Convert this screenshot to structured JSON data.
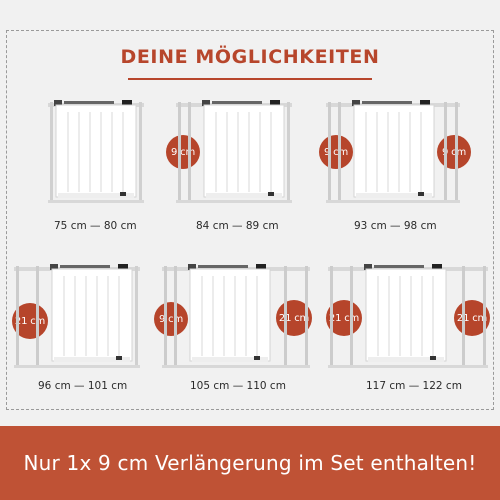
{
  "header": {
    "title": "DEINE MÖGLICHKEITEN"
  },
  "options": [
    {
      "size": "75 cm — 80 cm",
      "left_extensions": [],
      "right_extensions": []
    },
    {
      "size": "84 cm — 89 cm",
      "left_extensions": [
        "9 cm"
      ],
      "right_extensions": []
    },
    {
      "size": "93 cm — 98 cm",
      "left_extensions": [
        "9 cm"
      ],
      "right_extensions": [
        "9 cm"
      ]
    },
    {
      "size": "96 cm — 101 cm",
      "left_extensions": [
        "21 cm"
      ],
      "right_extensions": []
    },
    {
      "size": "105 cm — 110 cm",
      "left_extensions": [
        "9 cm"
      ],
      "right_extensions": [
        "21 cm"
      ]
    },
    {
      "size": "117 cm — 122 cm",
      "left_extensions": [
        "21 cm"
      ],
      "right_extensions": [
        "21 cm"
      ]
    }
  ],
  "footer": {
    "text": "Nur 1x 9 cm Verlängerung im Set enthalten!"
  },
  "colors": {
    "accent": "#b6452b",
    "footer_bg": "#bf5235",
    "background": "#f1f1f1"
  }
}
